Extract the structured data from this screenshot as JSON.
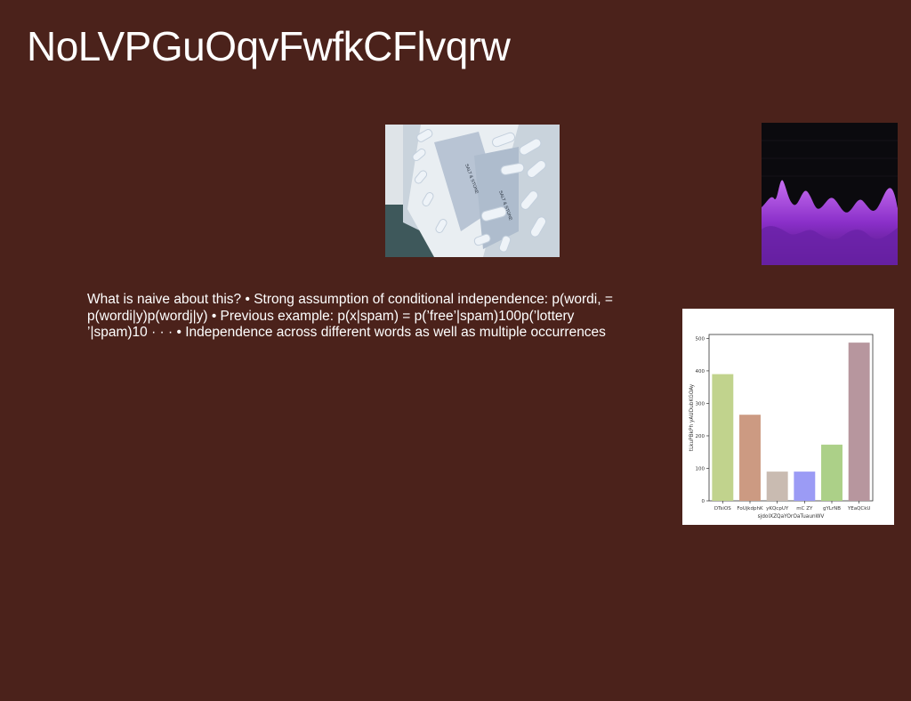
{
  "slide": {
    "title": "NoLVPGuOqvFwfkCFlvqrw",
    "body": "What is naive about this? • Strong assumption of conditional independence: p(wordi, = p(wordi|y)p(wordj|y) • Previous example: p(x|spam) = p(’free’|spam)100p(’lottery ’|spam)10 · · · • Independence across different words as well as multiple occurrences"
  },
  "images": {
    "pills": {
      "label_1": "SALT & STONE",
      "label_2": "SALT & STONE"
    }
  },
  "chart_data": {
    "type": "bar",
    "categories": [
      "DTsiOS",
      "FoUjkdphK",
      "yKQcpUY",
      "mC ZY",
      "gYLrNB",
      "YEaQCkU"
    ],
    "values": [
      390,
      265,
      90,
      90,
      173,
      487
    ],
    "colors": [
      "#c1d38d",
      "#cc9a82",
      "#c9bbb1",
      "#9b9bf5",
      "#acd088",
      "#b7969e"
    ],
    "xlabel": "sjdolXZQaYOrOaTuaunWV",
    "ylabel": "tLkuPBkPh yAUDubKGOAy",
    "ylim": [
      0,
      512
    ],
    "yticks": [
      0,
      100,
      200,
      300,
      400,
      500
    ]
  }
}
